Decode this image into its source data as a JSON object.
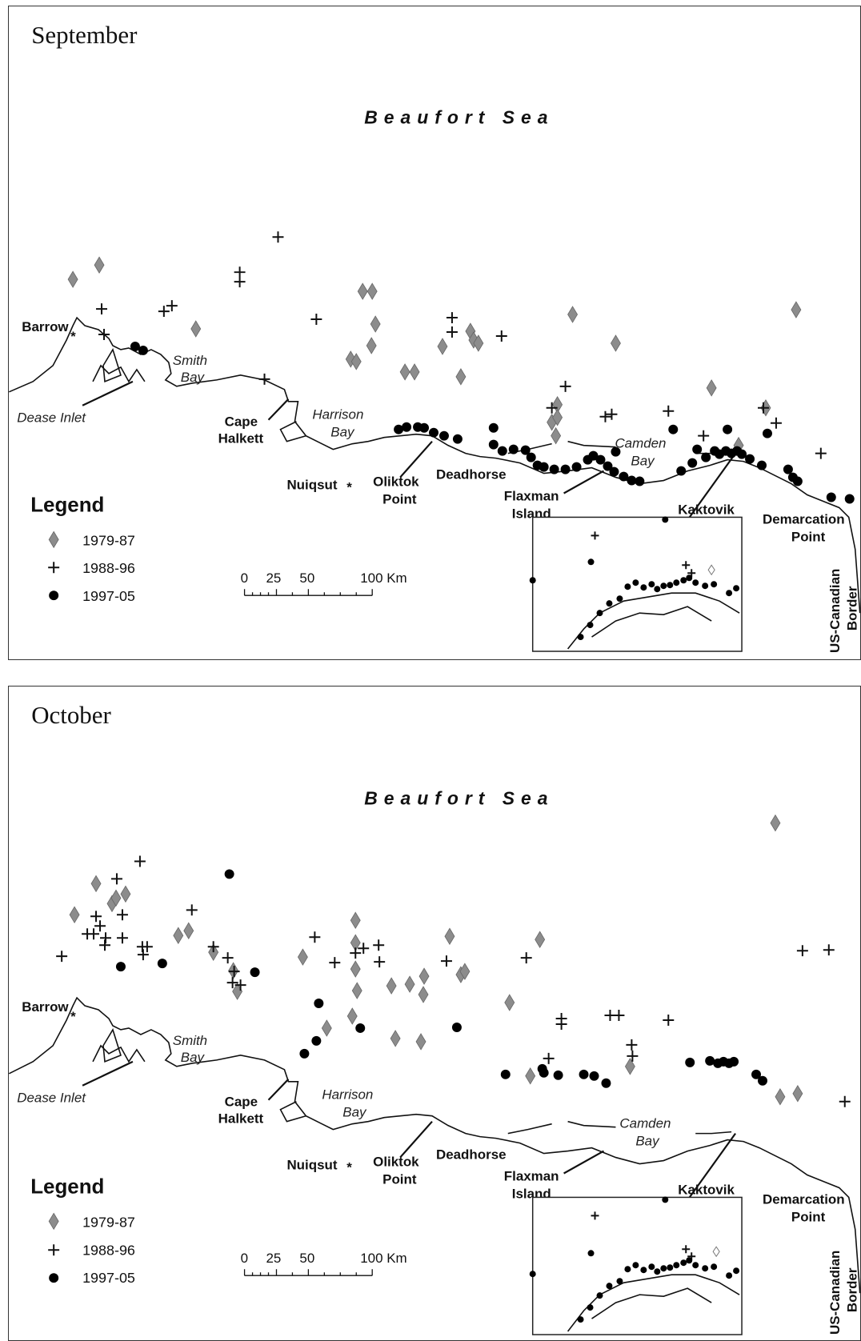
{
  "panels": [
    {
      "month": "September",
      "sea_label": "Beaufort Sea",
      "places": {
        "barrow": "Barrow",
        "smith_bay": [
          "Smith",
          "Bay"
        ],
        "dease_inlet": "Dease Inlet",
        "cape_halkett": [
          "Cape",
          "Halkett"
        ],
        "harrison_bay": [
          "Harrison",
          "Bay"
        ],
        "nuiqsut": "Nuiqsut",
        "oliktok_point": [
          "Oliktok",
          "Point"
        ],
        "deadhorse": "Deadhorse",
        "flaxman_island": [
          "Flaxman",
          "Island"
        ],
        "camden_bay": [
          "Camden",
          "Bay"
        ],
        "kaktovik": "Kaktovik",
        "demarcation_point": [
          "Demarcation",
          "Point"
        ],
        "border": [
          "US-Canadian",
          "Border"
        ]
      },
      "legend": {
        "title": "Legend",
        "items": [
          {
            "symbol": "diamond",
            "label": "1979-87"
          },
          {
            "symbol": "plus",
            "label": "1988-96"
          },
          {
            "symbol": "dot",
            "label": "1997-05"
          }
        ]
      },
      "scale_bar": {
        "ticks": [
          "0",
          "25",
          "50",
          "100 Km"
        ]
      }
    },
    {
      "month": "October",
      "sea_label": "Beaufort Sea",
      "places": {
        "barrow": "Barrow",
        "smith_bay": [
          "Smith",
          "Bay"
        ],
        "dease_inlet": "Dease Inlet",
        "cape_halkett": [
          "Cape",
          "Halkett"
        ],
        "harrison_bay": [
          "Harrison",
          "Bay"
        ],
        "nuiqsut": "Nuiqsut",
        "oliktok_point": [
          "Oliktok",
          "Point"
        ],
        "deadhorse": "Deadhorse",
        "flaxman_island": [
          "Flaxman",
          "Island"
        ],
        "camden_bay": [
          "Camden",
          "Bay"
        ],
        "kaktovik": "Kaktovik",
        "demarcation_point": [
          "Demarcation",
          "Point"
        ],
        "border": [
          "US-Canadian",
          "Border"
        ]
      },
      "legend": {
        "title": "Legend",
        "items": [
          {
            "symbol": "diamond",
            "label": "1979-87"
          },
          {
            "symbol": "plus",
            "label": "1988-96"
          },
          {
            "symbol": "dot",
            "label": "1997-05"
          }
        ]
      },
      "scale_bar": {
        "ticks": [
          "0",
          "25",
          "50",
          "100 Km"
        ]
      }
    }
  ],
  "colors": {
    "diamond": "#8c8c8c",
    "plus": "#111111",
    "dot": "#000000"
  }
}
